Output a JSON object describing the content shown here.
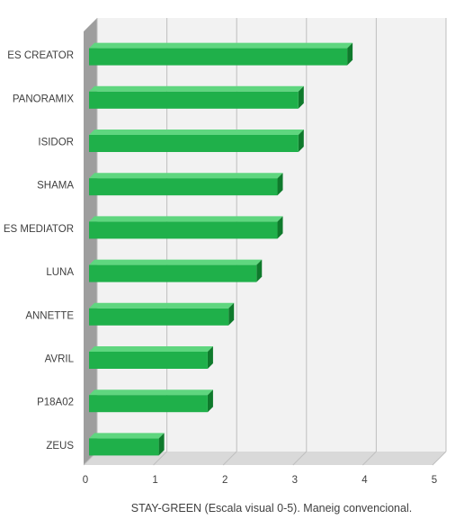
{
  "chart_data": {
    "type": "bar",
    "orientation": "horizontal",
    "style": "3d",
    "categories": [
      "ES CREATOR",
      "PANORAMIX",
      "ISIDOR",
      "SHAMA",
      "ES MEDIATOR",
      "LUNA",
      "ANNETTE",
      "AVRIL",
      "P18A02",
      "ZEUS"
    ],
    "values": [
      3.7,
      3.0,
      3.0,
      2.7,
      2.7,
      2.4,
      2.0,
      1.7,
      1.7,
      1.0
    ],
    "xlim": [
      0,
      5
    ],
    "xticks": [
      "0",
      "1",
      "2",
      "3",
      "4",
      "5"
    ],
    "xlabel": "STAY-GREEN (Escala visual 0-5). Maneig convencional.",
    "ylabel": "",
    "title": "",
    "grid": "vertical",
    "legend": "none",
    "colors": {
      "bar_front": "#1fb04a",
      "bar_top": "#5fd67f",
      "bar_side": "#0f7a2c",
      "plot_back": "#f2f2f2",
      "plot_floor": "#d9d9d9",
      "left_wall": "#9e9e9e",
      "grid": "#bfbfbf"
    }
  }
}
